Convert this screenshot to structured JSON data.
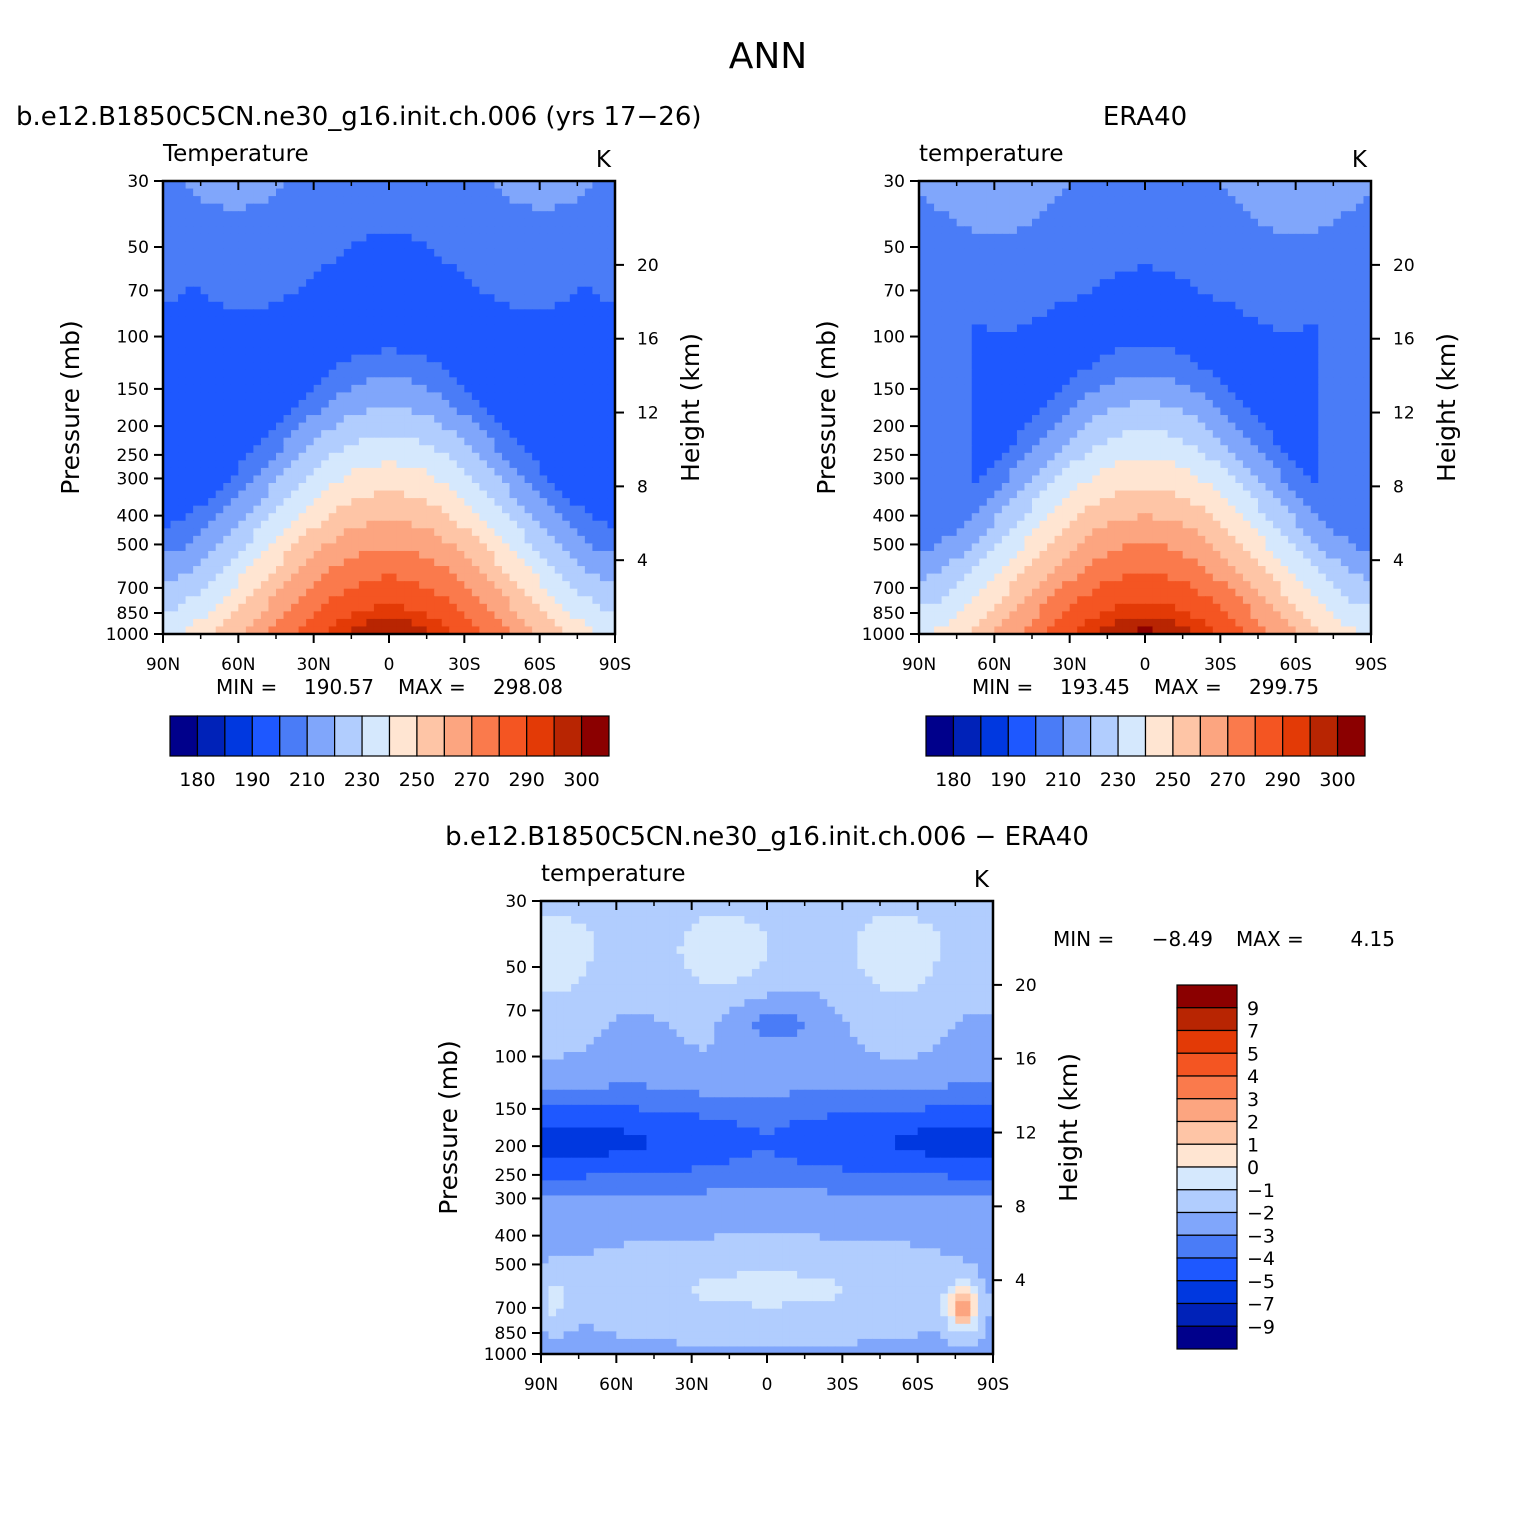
{
  "page": {
    "title": "ANN"
  },
  "chart_data": [
    {
      "type": "contour",
      "title": "b.e12.B1850C5CN.ne30_g16.init.ch.006 (yrs 17−26)",
      "left_label": "Temperature",
      "units": "K",
      "xlabel": "",
      "ylabel": "Pressure (mb)",
      "ylabel_right": "Height (km)",
      "x_ticks": [
        "90N",
        "60N",
        "30N",
        "0",
        "30S",
        "60S",
        "90S"
      ],
      "x_values": [
        90,
        60,
        30,
        0,
        -30,
        -60,
        -90
      ],
      "y_ticks": [
        30,
        50,
        70,
        100,
        150,
        200,
        250,
        300,
        400,
        500,
        700,
        850,
        1000
      ],
      "height_ticks": [
        4,
        8,
        12,
        16,
        20
      ],
      "min_label": "MIN =",
      "min": "190.57",
      "max_label": "MAX =",
      "max": "298.08",
      "levels": [
        180,
        185,
        190,
        200,
        210,
        220,
        230,
        240,
        250,
        260,
        270,
        280,
        290,
        295,
        300
      ],
      "colorbar_labels": [
        "180",
        "190",
        "210",
        "230",
        "250",
        "270",
        "290",
        "300"
      ],
      "colors": [
        "#00008b",
        "#0022b8",
        "#0038e0",
        "#1e58ff",
        "#4a7cf7",
        "#80a6fb",
        "#b1cdfe",
        "#d5e8fd",
        "#ffe5d2",
        "#fec5a6",
        "#fca580",
        "#fa7a4c",
        "#f45522",
        "#e33a06",
        "#b82502",
        "#8b0000"
      ]
    },
    {
      "type": "contour",
      "title": "ERA40",
      "left_label": "temperature",
      "units": "K",
      "xlabel": "",
      "ylabel": "Pressure (mb)",
      "ylabel_right": "Height (km)",
      "x_ticks": [
        "90N",
        "60N",
        "30N",
        "0",
        "30S",
        "60S",
        "90S"
      ],
      "x_values": [
        90,
        60,
        30,
        0,
        -30,
        -60,
        -90
      ],
      "y_ticks": [
        30,
        50,
        70,
        100,
        150,
        200,
        250,
        300,
        400,
        500,
        700,
        850,
        1000
      ],
      "height_ticks": [
        4,
        8,
        12,
        16,
        20
      ],
      "min_label": "MIN =",
      "min": "193.45",
      "max_label": "MAX =",
      "max": "299.75",
      "levels": [
        180,
        185,
        190,
        200,
        210,
        220,
        230,
        240,
        250,
        260,
        270,
        280,
        290,
        295,
        300
      ],
      "colorbar_labels": [
        "180",
        "190",
        "210",
        "230",
        "250",
        "270",
        "290",
        "300"
      ],
      "colors": [
        "#00008b",
        "#0022b8",
        "#0038e0",
        "#1e58ff",
        "#4a7cf7",
        "#80a6fb",
        "#b1cdfe",
        "#d5e8fd",
        "#ffe5d2",
        "#fec5a6",
        "#fca580",
        "#fa7a4c",
        "#f45522",
        "#e33a06",
        "#b82502",
        "#8b0000"
      ]
    },
    {
      "type": "contour",
      "title": "b.e12.B1850C5CN.ne30_g16.init.ch.006 − ERA40",
      "left_label": "temperature",
      "units": "K",
      "xlabel": "",
      "ylabel": "Pressure (mb)",
      "ylabel_right": "Height (km)",
      "x_ticks": [
        "90N",
        "60N",
        "30N",
        "0",
        "30S",
        "60S",
        "90S"
      ],
      "x_values": [
        90,
        60,
        30,
        0,
        -30,
        -60,
        -90
      ],
      "y_ticks": [
        30,
        50,
        70,
        100,
        150,
        200,
        250,
        300,
        400,
        500,
        700,
        850,
        1000
      ],
      "height_ticks": [
        4,
        8,
        12,
        16,
        20
      ],
      "min_label": "MIN =",
      "min": "−8.49",
      "max_label": "MAX =",
      "max": "4.15",
      "levels": [
        -9,
        -7,
        -5,
        -4,
        -3,
        -2,
        -1,
        0,
        1,
        2,
        3,
        4,
        5,
        7,
        9
      ],
      "colorbar_labels": [
        "9",
        "7",
        "5",
        "4",
        "3",
        "2",
        "1",
        "0",
        "−1",
        "−2",
        "−3",
        "−4",
        "−5",
        "−7",
        "−9"
      ],
      "colors": [
        "#00008b",
        "#0022b8",
        "#0038e0",
        "#1e58ff",
        "#4a7cf7",
        "#80a6fb",
        "#b1cdfe",
        "#d5e8fd",
        "#ffe5d2",
        "#fec5a6",
        "#fca580",
        "#fa7a4c",
        "#f45522",
        "#e33a06",
        "#b82502",
        "#8b0000"
      ]
    }
  ]
}
